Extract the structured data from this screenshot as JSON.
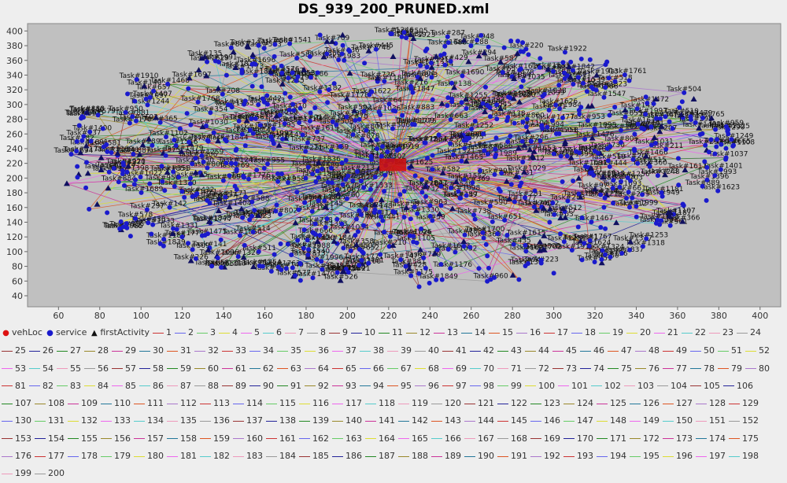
{
  "chart_data": {
    "type": "scatter",
    "title": "DS_939_200_PRUNED.xml",
    "xlabel": "",
    "ylabel": "",
    "xlim": [
      45,
      410
    ],
    "ylim": [
      25,
      410
    ],
    "x_ticks": [
      60,
      80,
      100,
      120,
      140,
      160,
      180,
      200,
      220,
      240,
      260,
      280,
      300,
      320,
      340,
      360,
      380,
      400
    ],
    "y_ticks": [
      40,
      60,
      80,
      100,
      120,
      140,
      160,
      180,
      200,
      220,
      240,
      260,
      280,
      300,
      320,
      340,
      360,
      380,
      400
    ],
    "depot": {
      "x": 222,
      "y": 218,
      "w": 14,
      "h": 10,
      "color": "#cc1111"
    },
    "service_count": 939,
    "route_count": 200,
    "service_color": "#1a1acc",
    "plot_bg": "#c0c0c0",
    "label_prefix": "Task#",
    "sample_labels": [
      "Task#420",
      "Task#1187",
      "Task#226",
      "Task#138",
      "Task#97",
      "Task#1479",
      "Task#526",
      "Task#1691",
      "Task#1748",
      "Task#1453",
      "Task#1344",
      "Task#1067",
      "Task#1827",
      "Task#575",
      "Task#381",
      "Task#1848",
      "Task#888",
      "Task#1653",
      "Task#1611",
      "Task#1561",
      "Task#1404",
      "Task#1313",
      "Task#709",
      "Task#884",
      "Task#358",
      "Task#1972"
    ],
    "legend": {
      "special": [
        {
          "label": "vehLoc",
          "marker": "●",
          "color": "#dd1111"
        },
        {
          "label": "service",
          "marker": "●",
          "color": "#1a1acc"
        },
        {
          "label": "firstActivity",
          "marker": "▲",
          "color": "#111111"
        }
      ],
      "palette": [
        "#cc3333",
        "#6666ee",
        "#66cc66",
        "#dddd33",
        "#ee66ee",
        "#55cccc",
        "#ee99bb",
        "#999999",
        "#993333",
        "#222299",
        "#228822",
        "#99882a",
        "#cc3399",
        "#227799",
        "#dd5522",
        "#aa77cc"
      ]
    }
  }
}
